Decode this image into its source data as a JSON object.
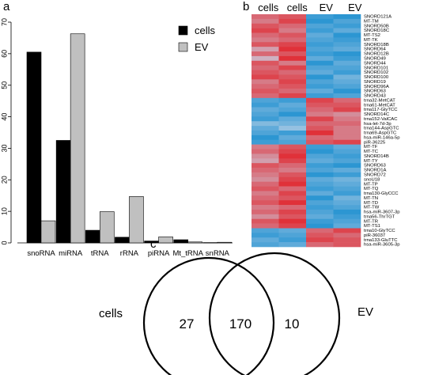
{
  "panels": {
    "a": "a",
    "b": "b",
    "c": "c"
  },
  "colors": {
    "cells": "#000000",
    "ev": "#c0c0c0",
    "heat_low": "#1a8fd0",
    "heat_mid": "#c9d6e8",
    "heat_high": "#e21f26",
    "venn_stroke": "#000000"
  },
  "chart_data": [
    {
      "type": "bar",
      "categories": [
        "snoRNA",
        "miRNA",
        "tRNA",
        "rRNA",
        "piRNA",
        "Mt_tRNA",
        "snRNA"
      ],
      "series": [
        {
          "name": "cells",
          "values": [
            60.5,
            32.5,
            4.0,
            1.8,
            0.6,
            1.0,
            0.1
          ]
        },
        {
          "name": "EV",
          "values": [
            7.0,
            66.3,
            9.9,
            14.7,
            1.9,
            0.3,
            0.2
          ]
        }
      ],
      "ylim": [
        0,
        70
      ],
      "yticks": [
        0,
        10,
        20,
        30,
        40,
        50,
        60,
        70
      ],
      "legend": "top-right",
      "grid": false
    },
    {
      "type": "heatmap",
      "columns": [
        "cells",
        "cells",
        "EV",
        "EV"
      ],
      "rows": [
        "SNORD121A",
        "MT-TM",
        "SNORD50B",
        "SNORD18C",
        "MT-TS2",
        "MT-TK",
        "SNORD18B",
        "SNORD64",
        "SNORD12B",
        "SNORD49",
        "SNORD44",
        "SNORD101",
        "SNORD102",
        "SNORD100",
        "SNORD19",
        "SNORD96A",
        "SNORD63",
        "SNORD43",
        "trna32-MetCAT",
        "trna61-MetCAT",
        "trna117-GlyTCC",
        "SNORD14C",
        "trna152-ValCAC",
        "hsa-let-7d-3p",
        "trna144-AspGTC",
        "trna69-AspGTC",
        "hsa-miR-146a-5p",
        "piR-36225",
        "MT-TF",
        "MT-TC",
        "SNORD14B",
        "MT-TY",
        "SNORD63",
        "SNORD1A",
        "SNORD72",
        "snoU18",
        "MT-TP",
        "MT-TQ",
        "trna130-GlyCCC",
        "MT-TN",
        "MT-TD",
        "MT-TW",
        "hsa-miR-3607-3p",
        "trna56-ThrTGT",
        "MT-TR",
        "MT-TS1",
        "trna10-GlyTCC",
        "piR-36037",
        "trna133-GluTTC",
        "hsa-miR-3605-3p"
      ],
      "values": [
        [
          0.6,
          0.7,
          -0.8,
          -0.9
        ],
        [
          0.5,
          0.8,
          -0.9,
          -0.7
        ],
        [
          0.7,
          0.6,
          -0.7,
          -0.8
        ],
        [
          0.8,
          0.5,
          -0.8,
          -0.6
        ],
        [
          0.6,
          0.7,
          -0.6,
          -0.9
        ],
        [
          0.5,
          0.6,
          -0.7,
          -0.8
        ],
        [
          0.7,
          0.8,
          -0.8,
          -0.7
        ],
        [
          0.3,
          0.9,
          -0.7,
          -0.6
        ],
        [
          0.6,
          0.7,
          -0.8,
          -0.9
        ],
        [
          0.2,
          0.9,
          -0.6,
          -0.8
        ],
        [
          0.7,
          0.5,
          -0.9,
          -0.6
        ],
        [
          0.6,
          0.8,
          -0.7,
          -0.7
        ],
        [
          0.7,
          0.6,
          -0.6,
          -0.8
        ],
        [
          0.8,
          0.7,
          -0.9,
          -0.5
        ],
        [
          0.5,
          0.8,
          -0.7,
          -0.6
        ],
        [
          0.6,
          0.7,
          -0.8,
          -0.7
        ],
        [
          0.7,
          0.6,
          -0.6,
          -0.9
        ],
        [
          0.6,
          0.8,
          -0.8,
          -0.7
        ],
        [
          -0.7,
          -0.8,
          0.8,
          0.6
        ],
        [
          -0.8,
          -0.6,
          0.7,
          0.7
        ],
        [
          -0.6,
          -0.7,
          0.6,
          0.8
        ],
        [
          -0.7,
          -0.9,
          0.5,
          0.4
        ],
        [
          -0.8,
          -0.6,
          0.8,
          0.5
        ],
        [
          -0.4,
          -0.5,
          0.6,
          0.6
        ],
        [
          -0.6,
          -0.3,
          0.7,
          0.5
        ],
        [
          -0.7,
          -0.8,
          0.9,
          0.5
        ],
        [
          -0.9,
          -0.6,
          0.6,
          0.5
        ],
        [
          -0.8,
          -0.7,
          0.7,
          0.8
        ],
        [
          0.5,
          0.7,
          -0.8,
          -0.6
        ],
        [
          0.6,
          0.8,
          -0.9,
          -0.7
        ],
        [
          0.4,
          0.9,
          -0.7,
          -0.8
        ],
        [
          0.3,
          0.8,
          -0.6,
          -0.7
        ],
        [
          0.7,
          0.6,
          -0.8,
          -0.9
        ],
        [
          0.6,
          0.5,
          -0.7,
          -0.6
        ],
        [
          0.5,
          0.7,
          -0.9,
          -0.8
        ],
        [
          0.4,
          0.8,
          -0.6,
          -0.5
        ],
        [
          0.6,
          0.9,
          -0.7,
          -0.6
        ],
        [
          0.7,
          0.6,
          -0.8,
          -0.7
        ],
        [
          0.5,
          0.8,
          -0.6,
          -0.8
        ],
        [
          0.6,
          0.7,
          -0.9,
          -0.5
        ],
        [
          0.7,
          0.9,
          -0.7,
          -0.6
        ],
        [
          0.5,
          0.6,
          -0.8,
          -0.7
        ],
        [
          0.6,
          0.8,
          -0.7,
          -0.9
        ],
        [
          0.4,
          0.7,
          -0.6,
          -0.8
        ],
        [
          0.7,
          0.9,
          -0.8,
          -0.7
        ],
        [
          0.6,
          0.8,
          -0.9,
          -0.6
        ],
        [
          -0.7,
          -0.6,
          0.6,
          0.8
        ],
        [
          -0.8,
          -0.7,
          0.7,
          0.6
        ],
        [
          -0.6,
          -0.8,
          0.8,
          0.7
        ],
        [
          -0.7,
          -0.6,
          0.6,
          0.7
        ]
      ],
      "grid": false
    },
    {
      "type": "venn",
      "sets": [
        "cells",
        "EV"
      ],
      "counts": {
        "only_cells": "27",
        "both": "170",
        "only_ev": "10"
      }
    }
  ]
}
